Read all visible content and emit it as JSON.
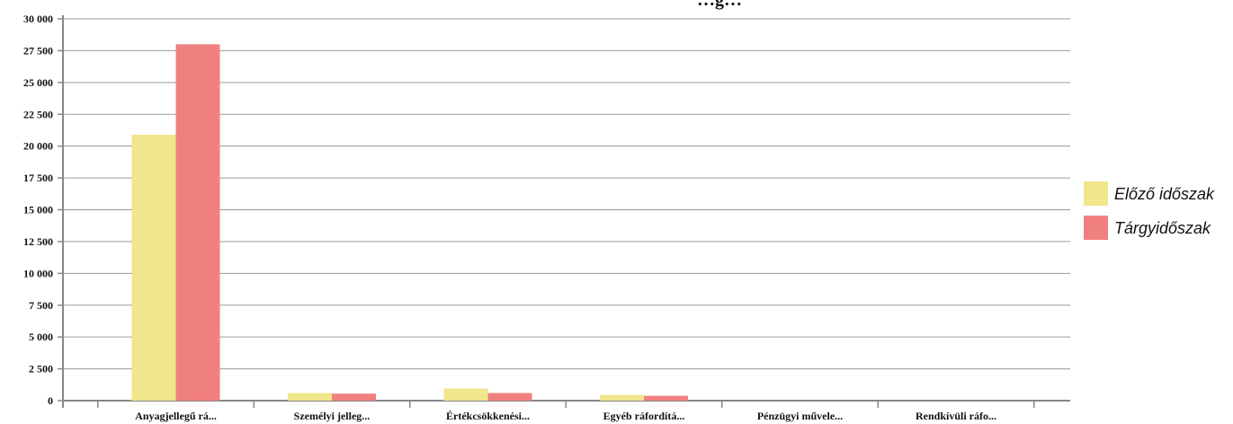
{
  "chart_data": {
    "type": "bar",
    "title": "…g…",
    "categories": [
      "Anyagjellegű rá...",
      "Személyi jelleg...",
      "Értékcsökkenési...",
      "Egyéb ráfordítá...",
      "Pénzügyi művele...",
      "Rendkívüli ráfo..."
    ],
    "series": [
      {
        "name": "Előző időszak",
        "color": "#f0e68c",
        "values": [
          20900,
          600,
          950,
          450,
          0,
          0
        ]
      },
      {
        "name": "Tárgyidőszak",
        "color": "#f08080",
        "values": [
          28000,
          550,
          600,
          380,
          0,
          0
        ]
      }
    ],
    "ylim": [
      0,
      30000
    ],
    "yticks": [
      "0",
      "2 500",
      "5 000",
      "7 500",
      "10 000",
      "12 500",
      "15 000",
      "17 500",
      "20 000",
      "22 500",
      "25 000",
      "27 500",
      "30 000"
    ],
    "grid": true,
    "legend_position": "right"
  }
}
